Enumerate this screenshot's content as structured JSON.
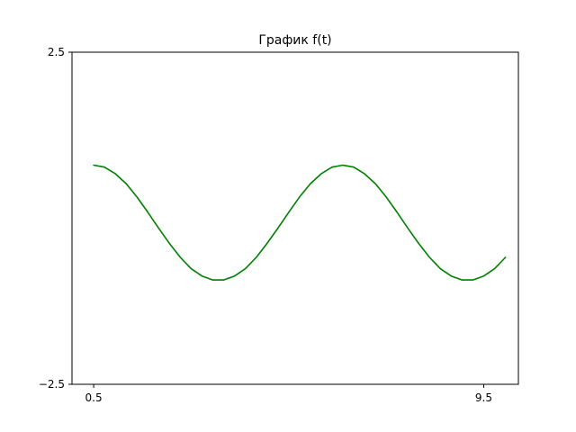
{
  "chart_data": {
    "type": "line",
    "title": "График f(t)",
    "xlabel": "",
    "ylabel": "",
    "xlim": [
      0.0,
      10.3
    ],
    "ylim": [
      -2.5,
      2.5
    ],
    "xticks": [
      0.5,
      9.5
    ],
    "xtick_labels": [
      "0.5",
      "9.5"
    ],
    "yticks": [
      -2.5,
      2.5
    ],
    "ytick_labels": [
      "−2.5",
      "2.5"
    ],
    "grid": false,
    "series": [
      {
        "color": "#008000",
        "x": [
          0.5,
          0.75,
          1.0,
          1.25,
          1.5,
          1.75,
          2.0,
          2.25,
          2.5,
          2.75,
          3.0,
          3.25,
          3.5,
          3.75,
          4.0,
          4.25,
          4.5,
          4.75,
          5.0,
          5.25,
          5.5,
          5.75,
          6.0,
          6.25,
          6.5,
          6.75,
          7.0,
          7.25,
          7.5,
          7.75,
          8.0,
          8.25,
          8.5,
          8.75,
          9.0,
          9.25,
          9.5,
          9.75,
          10.0
        ],
        "y": [
          0.8,
          0.77,
          0.67,
          0.52,
          0.32,
          0.09,
          -0.15,
          -0.38,
          -0.59,
          -0.76,
          -0.87,
          -0.93,
          -0.93,
          -0.87,
          -0.76,
          -0.59,
          -0.38,
          -0.15,
          0.09,
          0.32,
          0.52,
          0.67,
          0.77,
          0.8,
          0.77,
          0.67,
          0.52,
          0.32,
          0.09,
          -0.15,
          -0.38,
          -0.59,
          -0.76,
          -0.87,
          -0.93,
          -0.93,
          -0.87,
          -0.76,
          -0.59
        ]
      }
    ]
  }
}
